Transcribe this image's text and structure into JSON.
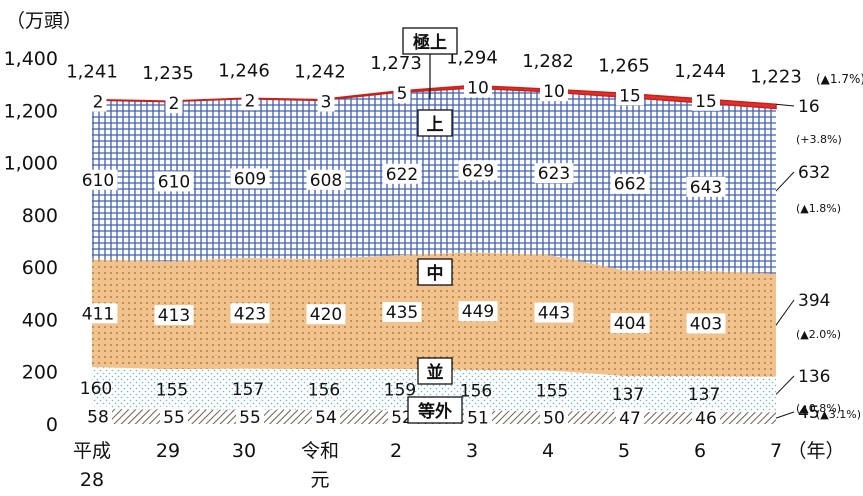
{
  "unit_label": "（万頭）",
  "chart_data": {
    "type": "area",
    "stacked": true,
    "x": [
      "平成\n28",
      "29",
      "30",
      "令和\n元",
      "2",
      "3",
      "4",
      "5",
      "6",
      "7"
    ],
    "x_unit_label": "（年）",
    "ylim": [
      0,
      1400
    ],
    "yticks": [
      "0",
      "200",
      "400",
      "600",
      "800",
      "1,000",
      "1,200",
      "1,400"
    ],
    "totals": [
      "1,241",
      "1,235",
      "1,246",
      "1,242",
      "1,273",
      "1,294",
      "1,282",
      "1,265",
      "1,244",
      "1,223"
    ],
    "total_change": "(▲1.7%)",
    "series": [
      {
        "name": "等外",
        "values": [
          58,
          55,
          55,
          54,
          52,
          51,
          50,
          47,
          46,
          45
        ],
        "change": "(▲3.1%)",
        "color": "#a89a8c"
      },
      {
        "name": "並",
        "values": [
          160,
          155,
          157,
          156,
          159,
          156,
          155,
          137,
          137,
          136
        ],
        "change": "(▲0.8%)",
        "color": "#cfe9ef"
      },
      {
        "name": "中",
        "values": [
          411,
          413,
          423,
          420,
          435,
          449,
          443,
          404,
          403,
          394
        ],
        "change": "(▲2.0%)",
        "color": "#f4c58f"
      },
      {
        "name": "上",
        "values": [
          610,
          610,
          609,
          608,
          622,
          629,
          623,
          662,
          643,
          632
        ],
        "change": "(▲1.8%)",
        "color": "#3f5fb0"
      },
      {
        "name": "極上",
        "values": [
          2,
          2,
          2,
          3,
          5,
          10,
          10,
          15,
          15,
          16
        ],
        "change": "(+3.8%)",
        "color": "#e0302a"
      }
    ]
  }
}
